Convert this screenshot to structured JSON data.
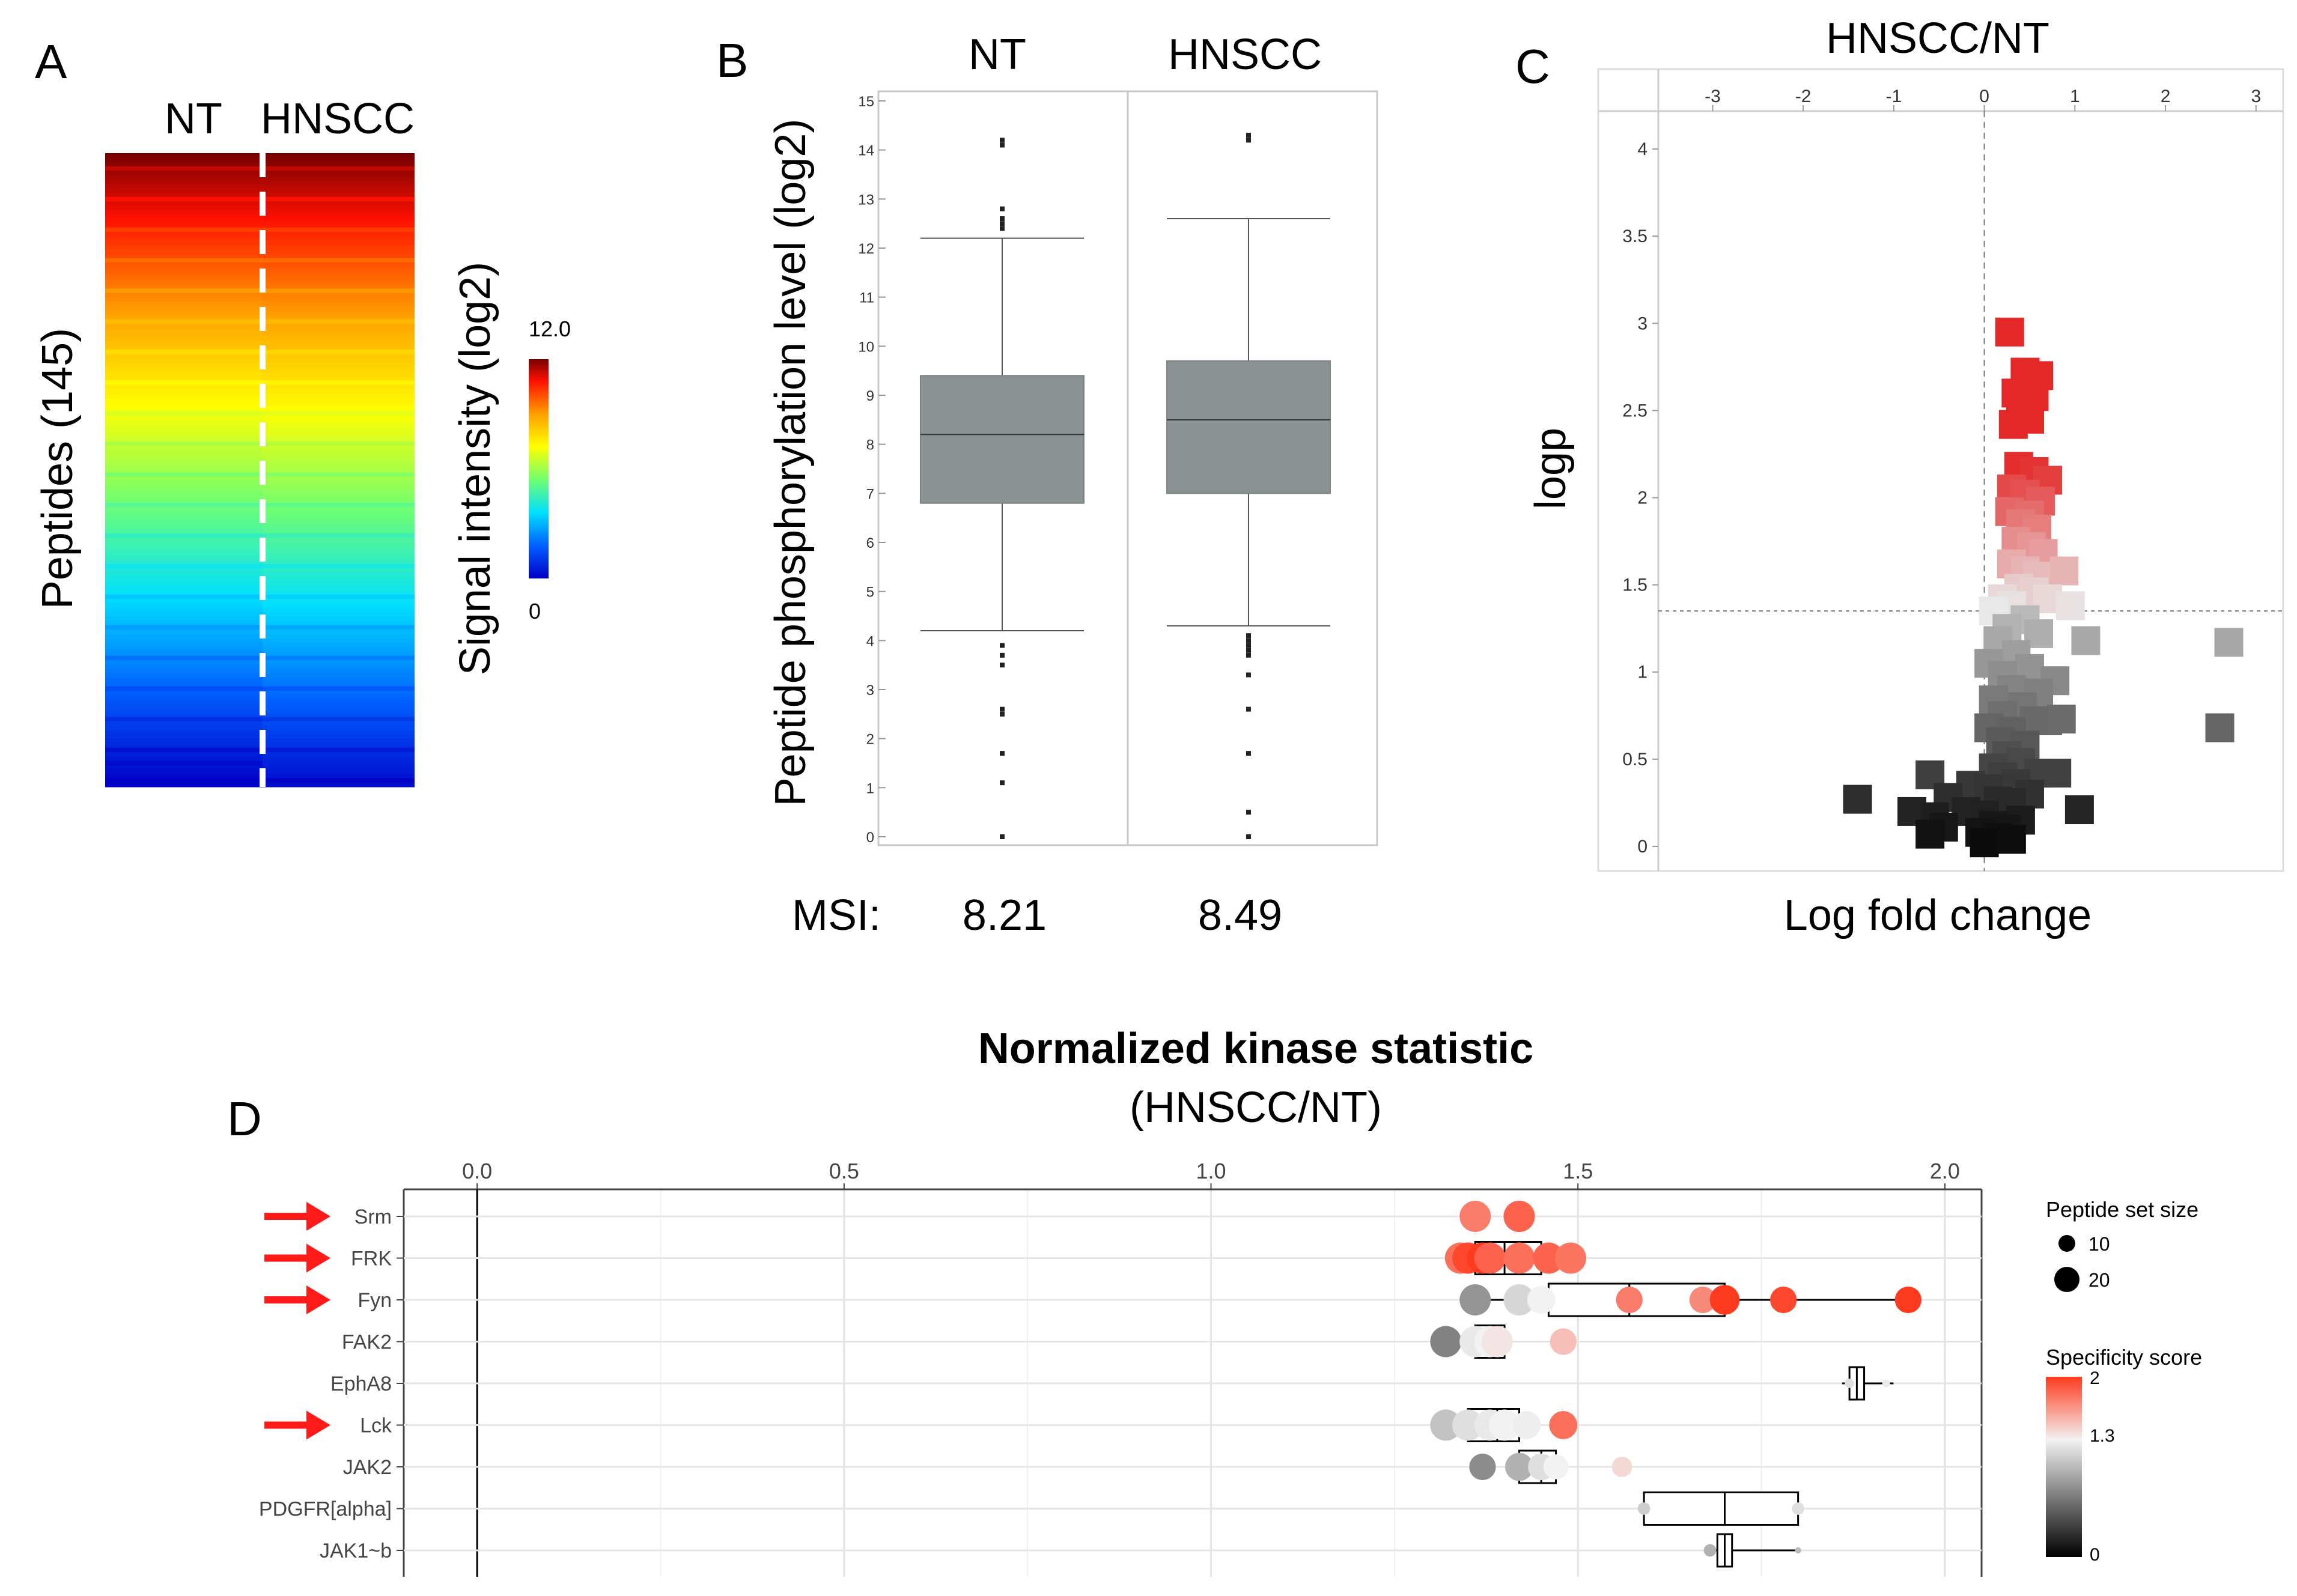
{
  "panels": {
    "A": {
      "letter": "A",
      "col_labels": [
        "NT",
        "HNSCC"
      ],
      "ylabel": "Peptides (145)",
      "colorbar_label": "Signal intensity (log2)",
      "colorbar_max": "12.0",
      "colorbar_min": "0"
    },
    "B": {
      "letter": "B",
      "col_labels": [
        "NT",
        "HNSCC"
      ],
      "ylabel": "Peptide phosphorylation level (log2)",
      "msi_label": "MSI:",
      "msi_values": [
        "8.21",
        "8.49"
      ]
    },
    "C": {
      "letter": "C",
      "title": "HNSCC/NT",
      "ylabel": "logp",
      "xlabel": "Log fold change"
    },
    "D": {
      "letter": "D",
      "title": "Normalized kinase statistic",
      "subtitle": "(HNSCC/NT)",
      "legend_size_title": "Peptide set size",
      "legend_size_values": [
        "10",
        "20"
      ],
      "legend_color_title": "Specificity score",
      "legend_color_ticks": [
        "2",
        "1.3",
        "0"
      ]
    }
  },
  "colors": {
    "heat_hi": "#7a0000",
    "heat_lo": "#0000c8",
    "box_fill": "#8a9294",
    "arrow_red": "#ff1a1a",
    "spec_hi": "#ff3b1f",
    "spec_mid": "#f2f2f2",
    "spec_lo": "#000000"
  },
  "chart_data": [
    {
      "id": "A",
      "type": "heatmap",
      "title": "",
      "columns": [
        "NT",
        "HNSCC"
      ],
      "rows": 145,
      "value_range": [
        0,
        12.0
      ],
      "note": "Rows sorted by mean signal intensity, descending (approx. 12 down to 0)."
    },
    {
      "id": "B",
      "type": "box",
      "categories": [
        "NT",
        "HNSCC"
      ],
      "ylabel": "Peptide phosphorylation level (log2)",
      "ylim": [
        0,
        15
      ],
      "yticks": [
        0,
        1,
        2,
        3,
        4,
        5,
        6,
        7,
        8,
        9,
        10,
        11,
        12,
        13,
        14,
        15
      ],
      "boxes": [
        {
          "name": "NT",
          "whisker_low": 4.2,
          "q1": 6.8,
          "median": 8.2,
          "q3": 9.4,
          "whisker_high": 12.2,
          "outliers": [
            14.2,
            14.1,
            12.8,
            12.6,
            12.5,
            12.4,
            3.9,
            3.7,
            3.5,
            2.6,
            2.5,
            1.7,
            1.1,
            0.0
          ]
        },
        {
          "name": "HNSCC",
          "whisker_low": 4.3,
          "q1": 7.0,
          "median": 8.5,
          "q3": 9.7,
          "whisker_high": 12.6,
          "outliers": [
            14.3,
            14.2,
            4.1,
            4.0,
            3.9,
            3.8,
            3.7,
            3.3,
            2.6,
            1.7,
            0.5,
            0.0
          ]
        }
      ],
      "msi": {
        "NT": 8.21,
        "HNSCC": 8.49
      }
    },
    {
      "id": "C",
      "type": "scatter",
      "title": "HNSCC/NT",
      "xlabel": "Log fold change",
      "ylabel": "logp",
      "xlim": [
        -3.6,
        3.3
      ],
      "ylim": [
        -0.1,
        4.2
      ],
      "xticks": [
        -3,
        -2,
        -1,
        0,
        1,
        2,
        3
      ],
      "yticks": [
        0,
        0.5,
        1,
        1.5,
        2,
        2.5,
        3,
        3.5,
        4
      ],
      "threshold_logp": 1.35,
      "points": [
        [
          0.28,
          2.95
        ],
        [
          0.45,
          2.72
        ],
        [
          0.6,
          2.7
        ],
        [
          0.35,
          2.6
        ],
        [
          0.55,
          2.58
        ],
        [
          0.4,
          2.5
        ],
        [
          0.5,
          2.45
        ],
        [
          0.32,
          2.42
        ],
        [
          0.38,
          2.18
        ],
        [
          0.55,
          2.15
        ],
        [
          0.7,
          2.1
        ],
        [
          0.3,
          2.05
        ],
        [
          0.45,
          2.02
        ],
        [
          0.62,
          1.98
        ],
        [
          0.28,
          1.92
        ],
        [
          0.5,
          1.9
        ],
        [
          0.4,
          1.85
        ],
        [
          0.58,
          1.82
        ],
        [
          0.35,
          1.75
        ],
        [
          0.52,
          1.72
        ],
        [
          0.65,
          1.68
        ],
        [
          0.3,
          1.62
        ],
        [
          0.45,
          1.58
        ],
        [
          0.58,
          1.55
        ],
        [
          0.88,
          1.58
        ],
        [
          0.38,
          1.48
        ],
        [
          0.55,
          1.46
        ],
        [
          0.2,
          1.42
        ],
        [
          0.7,
          1.42
        ],
        [
          0.95,
          1.38
        ],
        [
          0.3,
          1.38
        ],
        [
          0.1,
          1.35
        ],
        [
          0.45,
          1.3
        ],
        [
          0.25,
          1.25
        ],
        [
          0.6,
          1.22
        ],
        [
          0.15,
          1.18
        ],
        [
          1.12,
          1.18
        ],
        [
          2.7,
          1.17
        ],
        [
          0.35,
          1.1
        ],
        [
          0.05,
          1.05
        ],
        [
          0.5,
          1.02
        ],
        [
          0.2,
          0.98
        ],
        [
          0.78,
          0.95
        ],
        [
          0.3,
          0.9
        ],
        [
          0.6,
          0.88
        ],
        [
          0.1,
          0.84
        ],
        [
          0.42,
          0.8
        ],
        [
          0.2,
          0.75
        ],
        [
          0.55,
          0.72
        ],
        [
          0.7,
          0.72
        ],
        [
          0.85,
          0.73
        ],
        [
          0.05,
          0.68
        ],
        [
          0.3,
          0.66
        ],
        [
          2.6,
          0.68
        ],
        [
          0.18,
          0.6
        ],
        [
          0.45,
          0.58
        ],
        [
          0.25,
          0.52
        ],
        [
          0.4,
          0.48
        ],
        [
          0.1,
          0.45
        ],
        [
          0.6,
          0.42
        ],
        [
          0.2,
          0.4
        ],
        [
          0.8,
          0.42
        ],
        [
          -0.6,
          0.41
        ],
        [
          0.35,
          0.36
        ],
        [
          -0.15,
          0.35
        ],
        [
          0.05,
          0.33
        ],
        [
          0.5,
          0.3
        ],
        [
          -1.4,
          0.27
        ],
        [
          -0.4,
          0.28
        ],
        [
          0.15,
          0.26
        ],
        [
          0.3,
          0.25
        ],
        [
          1.05,
          0.21
        ],
        [
          -0.8,
          0.2
        ],
        [
          -0.2,
          0.2
        ],
        [
          0.0,
          0.18
        ],
        [
          -0.55,
          0.17
        ],
        [
          0.4,
          0.15
        ],
        [
          -0.45,
          0.11
        ],
        [
          0.1,
          0.12
        ],
        [
          0.25,
          0.1
        ],
        [
          -0.05,
          0.08
        ],
        [
          -0.6,
          0.07
        ],
        [
          0.15,
          0.05
        ],
        [
          0.0,
          0.02
        ],
        [
          0.3,
          0.04
        ]
      ]
    },
    {
      "id": "D",
      "type": "scatter",
      "title": "Normalized kinase statistic",
      "subtitle": "(HNSCC/NT)",
      "xlim": [
        -0.1,
        2.05
      ],
      "xticks": [
        "0.0",
        "0.5",
        "1.0",
        "1.5",
        "2.0"
      ],
      "xtick_values": [
        0.0,
        0.5,
        1.0,
        1.5,
        2.0
      ],
      "kinases": [
        {
          "name": "Srm",
          "arrow": true,
          "box": null,
          "points": [
            {
              "x": 1.36,
              "spec": 1.75,
              "size": 20
            },
            {
              "x": 1.42,
              "spec": 1.95,
              "size": 20
            },
            {
              "x": 1.42,
              "spec": 1.85,
              "size": 20
            }
          ]
        },
        {
          "name": "FRK",
          "arrow": true,
          "box": [
            1.36,
            1.4,
            1.45
          ],
          "points": [
            {
              "x": 1.34,
              "spec": 1.8,
              "size": 20
            },
            {
              "x": 1.35,
              "spec": 1.95,
              "size": 20
            },
            {
              "x": 1.37,
              "spec": 2.0,
              "size": 20
            },
            {
              "x": 1.38,
              "spec": 1.85,
              "size": 20
            },
            {
              "x": 1.42,
              "spec": 1.8,
              "size": 20
            },
            {
              "x": 1.46,
              "spec": 1.85,
              "size": 20
            },
            {
              "x": 1.49,
              "spec": 1.78,
              "size": 20
            }
          ]
        },
        {
          "name": "Fyn",
          "arrow": true,
          "box": [
            1.46,
            1.57,
            1.7
          ],
          "whiskers": [
            1.36,
            1.94
          ],
          "points": [
            {
              "x": 1.36,
              "spec": 0.8,
              "size": 20
            },
            {
              "x": 1.42,
              "spec": 1.15,
              "size": 20
            },
            {
              "x": 1.45,
              "spec": 1.3,
              "size": 18
            },
            {
              "x": 1.57,
              "spec": 1.75,
              "size": 17
            },
            {
              "x": 1.67,
              "spec": 1.7,
              "size": 17
            },
            {
              "x": 1.7,
              "spec": 2.0,
              "size": 19
            },
            {
              "x": 1.78,
              "spec": 1.95,
              "size": 17
            },
            {
              "x": 1.95,
              "spec": 2.0,
              "size": 17
            }
          ]
        },
        {
          "name": "FAK2",
          "arrow": false,
          "box": [
            1.36,
            1.38,
            1.4
          ],
          "points": [
            {
              "x": 1.32,
              "spec": 0.7,
              "size": 20
            },
            {
              "x": 1.36,
              "spec": 1.25,
              "size": 20
            },
            {
              "x": 1.38,
              "spec": 1.3,
              "size": 20
            },
            {
              "x": 1.39,
              "spec": 1.35,
              "size": 20
            },
            {
              "x": 1.48,
              "spec": 1.5,
              "size": 17
            }
          ]
        },
        {
          "name": "EphA8",
          "arrow": false,
          "box": [
            1.87,
            1.88,
            1.89
          ],
          "whiskers": [
            1.86,
            1.93
          ],
          "points": [
            {
              "x": 1.87,
              "spec": 1.2,
              "size": 6
            },
            {
              "x": 1.92,
              "spec": 1.25,
              "size": 5
            }
          ]
        },
        {
          "name": "Lck",
          "arrow": true,
          "box": [
            1.35,
            1.39,
            1.42
          ],
          "points": [
            {
              "x": 1.32,
              "spec": 1.05,
              "size": 20
            },
            {
              "x": 1.35,
              "spec": 1.2,
              "size": 20
            },
            {
              "x": 1.38,
              "spec": 1.25,
              "size": 20
            },
            {
              "x": 1.4,
              "spec": 1.3,
              "size": 20
            },
            {
              "x": 1.43,
              "spec": 1.28,
              "size": 18
            },
            {
              "x": 1.48,
              "spec": 1.8,
              "size": 18
            }
          ]
        },
        {
          "name": "JAK2",
          "arrow": false,
          "box": [
            1.42,
            1.45,
            1.47
          ],
          "points": [
            {
              "x": 1.37,
              "spec": 0.75,
              "size": 17
            },
            {
              "x": 1.42,
              "spec": 0.95,
              "size": 18
            },
            {
              "x": 1.45,
              "spec": 1.2,
              "size": 17
            },
            {
              "x": 1.47,
              "spec": 1.3,
              "size": 16
            },
            {
              "x": 1.56,
              "spec": 1.4,
              "size": 13
            }
          ]
        },
        {
          "name": "PDGFR[alpha]",
          "arrow": false,
          "box": [
            1.59,
            1.7,
            1.8
          ],
          "points": [
            {
              "x": 1.59,
              "spec": 1.1,
              "size": 8
            },
            {
              "x": 1.8,
              "spec": 1.2,
              "size": 8
            }
          ]
        },
        {
          "name": "JAK1~b",
          "arrow": false,
          "box": [
            1.69,
            1.7,
            1.71
          ],
          "whiskers": [
            1.68,
            1.8
          ],
          "points": [
            {
              "x": 1.68,
              "spec": 0.95,
              "size": 8
            },
            {
              "x": 1.8,
              "spec": 1.0,
              "size": 4
            }
          ]
        }
      ]
    }
  ]
}
